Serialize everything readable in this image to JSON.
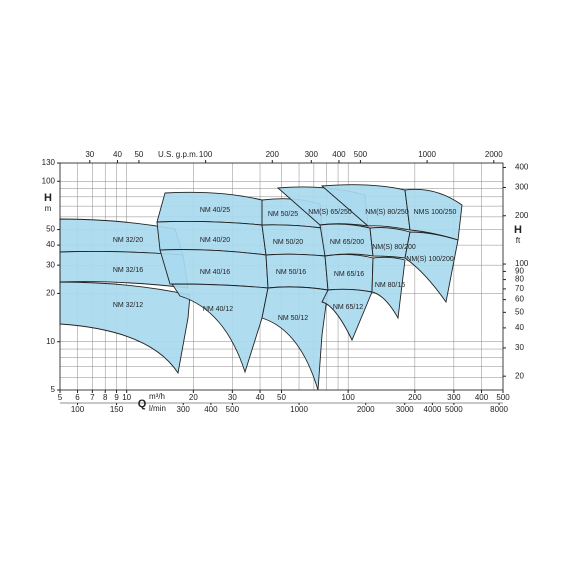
{
  "chart_data": {
    "type": "pump-chart",
    "x_axis_symbol": "Q",
    "x_unit": "m³/h",
    "x2_unit": "l/min",
    "x3_label": "U.S. g.p.m.",
    "y_axis_symbol": "H",
    "y_unit": "m",
    "y2_axis_symbol": "H",
    "y2_unit": "ft",
    "log_scale": true,
    "grid": true,
    "xlim": [
      5,
      500
    ],
    "xticks": [
      5,
      6,
      7,
      8,
      9,
      10,
      20,
      30,
      40,
      50,
      100,
      200,
      300,
      400,
      500
    ],
    "xgrid": [
      5,
      6,
      7,
      8,
      9,
      10,
      20,
      30,
      40,
      50,
      60,
      70,
      80,
      90,
      100,
      200,
      300,
      400,
      500
    ],
    "x2lim": [
      83.33,
      8333
    ],
    "x2ticks": [
      100,
      150,
      300,
      400,
      500,
      1000,
      2000,
      3000,
      4000,
      5000,
      8000
    ],
    "x3lim": [
      22.01,
      2201
    ],
    "x3ticks": [
      30,
      40,
      50,
      100,
      200,
      300,
      400,
      500,
      1000,
      2000
    ],
    "ylim": [
      5,
      130
    ],
    "yticks": [
      5,
      10,
      20,
      30,
      40,
      50,
      100,
      130
    ],
    "ygrid": [
      5,
      6,
      7,
      8,
      9,
      10,
      20,
      30,
      40,
      50,
      60,
      70,
      80,
      90,
      100,
      130
    ],
    "y2lim": [
      16.4,
      426.5
    ],
    "y2ticks": [
      20,
      30,
      40,
      50,
      60,
      70,
      80,
      90,
      100,
      200,
      300,
      400
    ],
    "region_color": "#a9d9ef",
    "regions": [
      "NM 32/20",
      "NM 32/16",
      "NM 32/12",
      "NM 40/25",
      "NM 40/20",
      "NM 40/16",
      "NM 40/12",
      "NM 50/25",
      "NM 50/20",
      "NM 50/16",
      "NM 50/12",
      "NM(S) 65/250",
      "NM 65/200",
      "NM 65/16",
      "NM 65/12",
      "NM(S) 80/250",
      "NM(S) 80/200",
      "NM 80/16",
      "NMS 100/250",
      "NM(S) 100/200"
    ]
  }
}
